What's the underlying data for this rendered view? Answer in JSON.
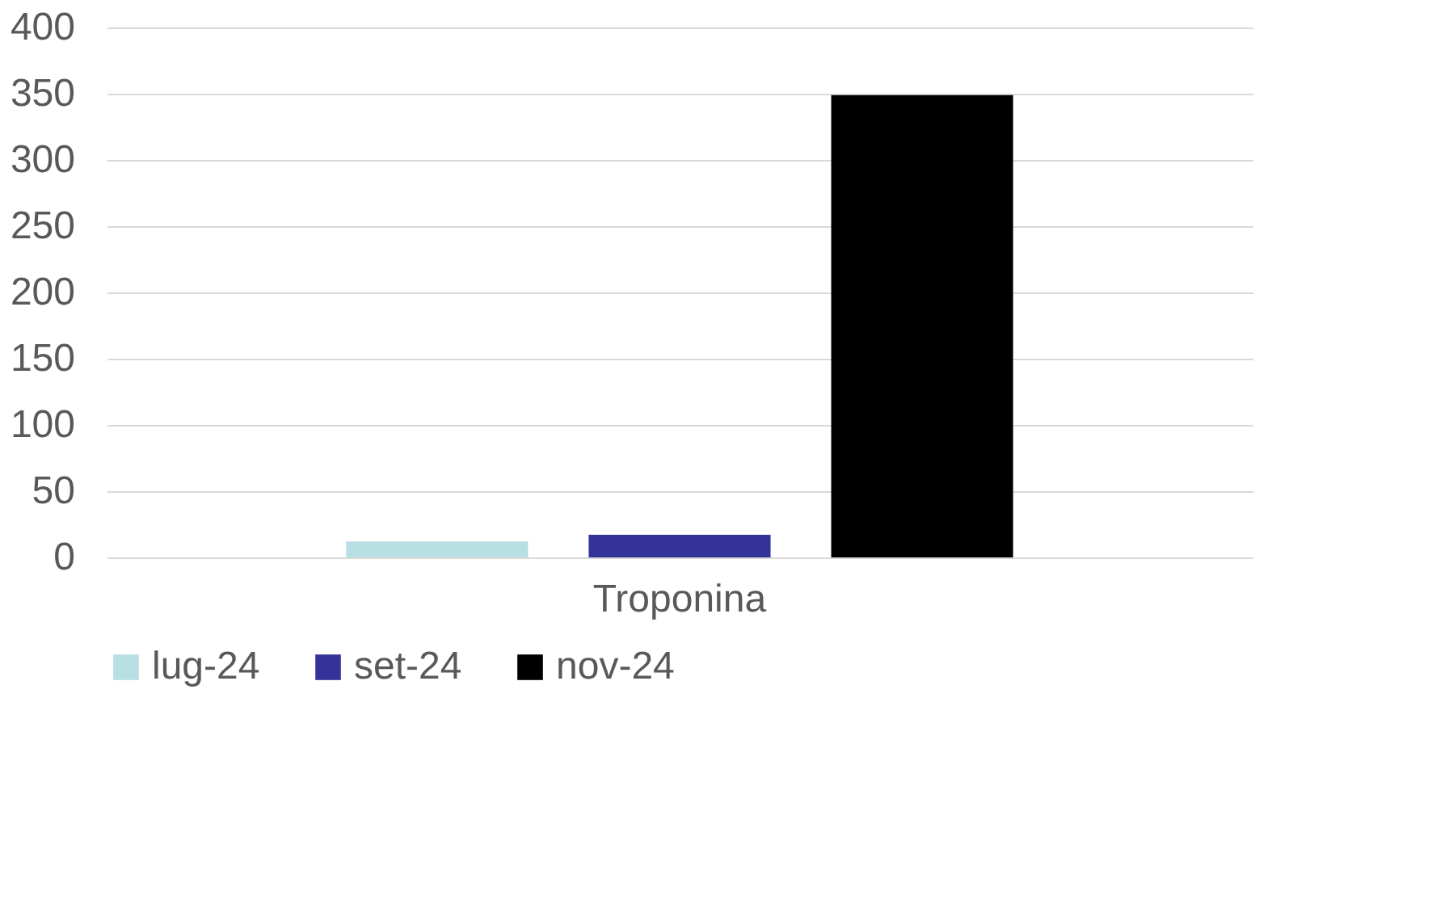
{
  "chart_data": {
    "type": "bar",
    "categories": [
      "Troponina"
    ],
    "series": [
      {
        "name": "lug-24",
        "color": "#b8dfe2",
        "values": [
          12
        ]
      },
      {
        "name": "set-24",
        "color": "#343399",
        "values": [
          17
        ]
      },
      {
        "name": "nov-24",
        "color": "#000000",
        "values": [
          349
        ]
      }
    ],
    "ylim": [
      0,
      400
    ],
    "yticks": [
      0,
      50,
      100,
      150,
      200,
      250,
      300,
      350,
      400
    ],
    "grid": "y",
    "legend": "bottom"
  }
}
